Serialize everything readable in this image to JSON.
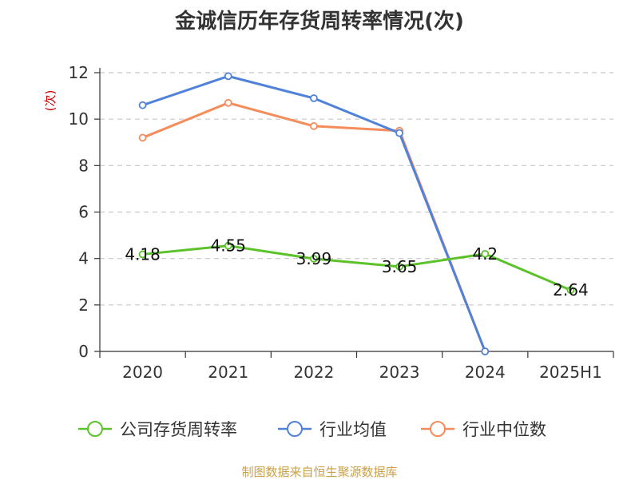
{
  "chart_data": {
    "type": "line",
    "title": "金诚信历年存货周转率情况(次)",
    "ylabel": "(次)",
    "xlabel": "",
    "categories": [
      "2020",
      "2021",
      "2022",
      "2023",
      "2024",
      "2025H1"
    ],
    "ylim": [
      0,
      12
    ],
    "yticks": [
      0,
      2,
      4,
      6,
      8,
      10,
      12
    ],
    "grid": "horizontal-dashed",
    "legend_position": "bottom",
    "series": [
      {
        "name": "公司存货周转率",
        "color": "#5cc22a",
        "values": [
          4.18,
          4.55,
          3.99,
          3.65,
          4.2,
          2.64
        ],
        "labels": [
          "4.18",
          "4.55",
          "3.99",
          "3.65",
          "4.2",
          "2.64"
        ]
      },
      {
        "name": "行业均值",
        "color": "#4f82d8",
        "values": [
          10.6,
          11.85,
          10.9,
          9.4,
          0,
          null
        ]
      },
      {
        "name": "行业中位数",
        "color": "#f58c5b",
        "values": [
          9.2,
          10.7,
          9.7,
          9.5,
          0,
          null
        ]
      }
    ],
    "source": "制图数据来自恒生聚源数据库"
  }
}
